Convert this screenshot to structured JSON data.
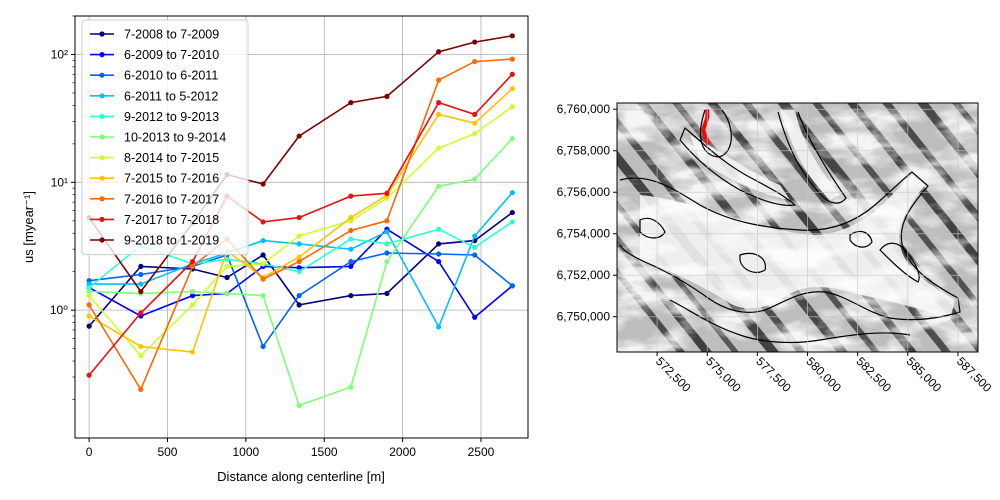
{
  "chart_data": [
    {
      "type": "line",
      "xlabel": "Distance along centerline [m]",
      "ylabel": "u_s [myear^-1]",
      "ylabel_display": "us [myear⁻¹]",
      "yscale": "log",
      "xlim": [
        -90,
        2800
      ],
      "ylim": [
        0.1,
        200
      ],
      "xticks": [
        0,
        500,
        1000,
        1500,
        2000,
        2500
      ],
      "xtick_labels": [
        "0",
        "500",
        "1000",
        "1500",
        "2000",
        "2500"
      ],
      "yticks": [
        1,
        10,
        100
      ],
      "ytick_labels": [
        "10⁰",
        "10¹",
        "10²"
      ],
      "grid": true,
      "legend": "top-left",
      "x": [
        0,
        330,
        660,
        880,
        1110,
        1340,
        1670,
        1900,
        2230,
        2460,
        2700
      ],
      "series": [
        {
          "name": "7-2008 to 7-2009",
          "color": "#00007f",
          "values": [
            0.75,
            2.2,
            2.1,
            1.8,
            2.7,
            1.1,
            1.3,
            1.35,
            3.3,
            3.5,
            5.8
          ]
        },
        {
          "name": "6-2009 to 7-2010",
          "color": "#0000ff",
          "values": [
            1.5,
            0.9,
            1.3,
            1.35,
            2.2,
            2.15,
            2.2,
            4.3,
            2.4,
            0.88,
            1.55
          ]
        },
        {
          "name": "6-2010 to 6-2011",
          "color": "#0063ff",
          "values": [
            1.7,
            1.9,
            2.2,
            2.7,
            0.52,
            1.3,
            2.4,
            2.8,
            2.75,
            2.7,
            1.55
          ]
        },
        {
          "name": "6-2011 to 5-2012",
          "color": "#00bfff",
          "values": [
            1.6,
            1.6,
            2.3,
            2.8,
            3.5,
            3.3,
            3.0,
            4.1,
            0.74,
            3.8,
            8.3
          ]
        },
        {
          "name": "9-2012 to 9-2013",
          "color": "#2affcd",
          "values": [
            1.5,
            3.2,
            2.3,
            2.5,
            2.3,
            2.0,
            3.6,
            3.3,
            4.3,
            3.1,
            4.9
          ]
        },
        {
          "name": "10-2013 to 9-2014",
          "color": "#7cff7a",
          "values": [
            1.4,
            1.35,
            1.4,
            1.35,
            1.3,
            0.18,
            0.25,
            2.4,
            9.3,
            10.6,
            22
          ]
        },
        {
          "name": "8-2014 to 7-2015",
          "color": "#cdff2a",
          "values": [
            1.3,
            0.44,
            1.1,
            2.2,
            2.3,
            3.8,
            5.0,
            7.5,
            18.5,
            24,
            39
          ]
        },
        {
          "name": "7-2015 to 7-2016",
          "color": "#ffc400",
          "values": [
            0.9,
            0.52,
            0.47,
            2.9,
            1.8,
            2.6,
            5.3,
            7.9,
            34,
            29,
            54
          ]
        },
        {
          "name": "7-2016 to 7-2017",
          "color": "#ff6700",
          "values": [
            1.1,
            0.24,
            2.2,
            3.6,
            1.75,
            2.4,
            4.2,
            5.0,
            63,
            88,
            92
          ]
        },
        {
          "name": "7-2017 to 7-2018",
          "color": "#ee0f0f",
          "values": [
            0.31,
            0.95,
            2.4,
            7.8,
            4.9,
            5.3,
            7.8,
            8.2,
            42,
            34,
            70
          ]
        },
        {
          "name": "9-2018 to 1-2019",
          "color": "#7f0000",
          "values": [
            5.3,
            1.4,
            4.8,
            11.5,
            9.7,
            23,
            42,
            47,
            105,
            125,
            140
          ]
        }
      ]
    },
    {
      "type": "heatmap",
      "title": "",
      "xlim": [
        570500,
        588500
      ],
      "ylim": [
        6748300,
        6760300
      ],
      "xticks": [
        572500,
        575000,
        577500,
        580000,
        582500,
        585000,
        587500
      ],
      "xtick_labels": [
        "572,500",
        "575,000",
        "577,500",
        "580,000",
        "582,500",
        "585,000",
        "587,500"
      ],
      "yticks": [
        6750000,
        6752000,
        6754000,
        6756000,
        6758000,
        6760000
      ],
      "ytick_labels": [
        "6,750,000",
        "6,752,000",
        "6,754,000",
        "6,756,000",
        "6,758,000",
        "6,760,000"
      ],
      "grid": true,
      "colormap": "grayscale hillshade",
      "outline_color": "#000000",
      "centerline_color": "#ff0000",
      "centerline": [
        [
          575000,
          6760000
        ],
        [
          575000,
          6759600
        ],
        [
          574900,
          6759300
        ],
        [
          574800,
          6759000
        ],
        [
          574900,
          6758700
        ],
        [
          575050,
          6758300
        ]
      ]
    }
  ]
}
